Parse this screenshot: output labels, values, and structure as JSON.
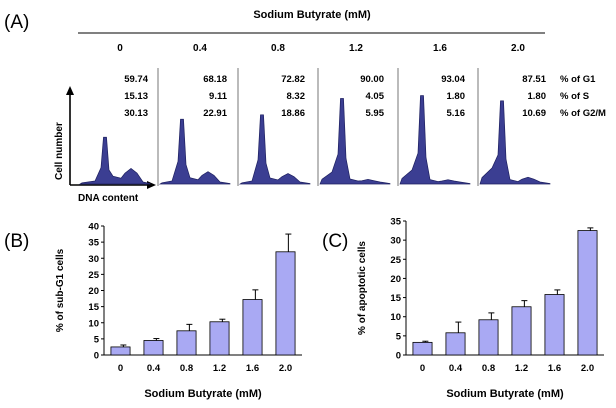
{
  "panel_a": {
    "letter": "(A)",
    "header": "Sodium Butyrate (mM)",
    "y_label": "Cell number",
    "x_label": "DNA content",
    "row_labels": [
      "% of G1",
      "% of S",
      "% of G2/M"
    ],
    "conditions": [
      {
        "dose": "0",
        "g1": "59.74",
        "s": "15.13",
        "g2m": "30.13"
      },
      {
        "dose": "0.4",
        "g1": "68.18",
        "s": "9.11",
        "g2m": "22.91"
      },
      {
        "dose": "0.8",
        "g1": "72.82",
        "s": "8.32",
        "g2m": "18.86"
      },
      {
        "dose": "1.2",
        "g1": "90.00",
        "s": "4.05",
        "g2m": "5.95"
      },
      {
        "dose": "1.6",
        "g1": "93.04",
        "s": "1.80",
        "g2m": "5.16"
      },
      {
        "dose": "2.0",
        "g1": "87.51",
        "s": "1.80",
        "g2m": "10.69"
      }
    ],
    "fill_color": "#3b3e92"
  },
  "chart_data": [
    {
      "type": "bar",
      "letter": "(B)",
      "categories": [
        "0",
        "0.4",
        "0.8",
        "1.2",
        "1.6",
        "2.0"
      ],
      "values": [
        2.5,
        4.5,
        7.5,
        10.3,
        17.2,
        32.0
      ],
      "errors": [
        0.6,
        0.6,
        2.0,
        0.8,
        3.0,
        5.5
      ],
      "xlabel": "Sodium Butyrate (mM)",
      "ylabel": "% of sub-G1 cells",
      "ylim": [
        0,
        40
      ],
      "yticks": [
        "0",
        "5",
        "10",
        "15",
        "20",
        "25",
        "30",
        "35",
        "40"
      ],
      "bar_color": "#a9a9f3"
    },
    {
      "type": "bar",
      "letter": "(C)",
      "categories": [
        "0",
        "0.4",
        "0.8",
        "1.2",
        "1.6",
        "2.0"
      ],
      "values": [
        3.3,
        5.8,
        9.2,
        12.6,
        15.8,
        32.5
      ],
      "errors": [
        0.3,
        2.8,
        1.8,
        1.6,
        1.2,
        0.7
      ],
      "xlabel": "Sodium Butyrate (mM)",
      "ylabel": "% of apoptotic cells",
      "ylim": [
        0,
        35
      ],
      "yticks": [
        "0",
        "5",
        "10",
        "15",
        "20",
        "25",
        "30",
        "35"
      ],
      "bar_color": "#a9a9f3"
    }
  ]
}
